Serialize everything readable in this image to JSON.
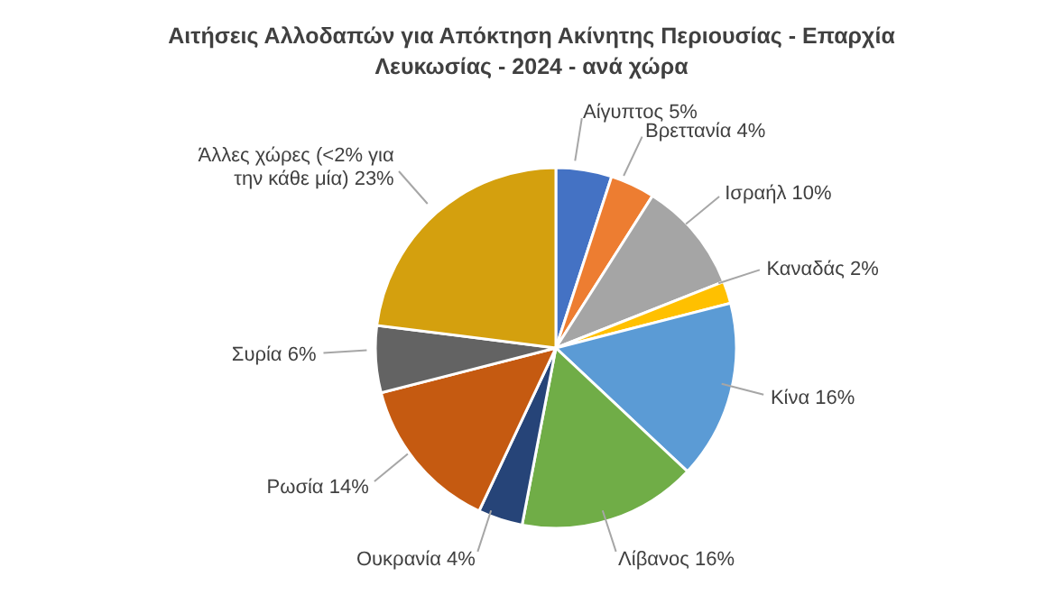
{
  "chart_data": {
    "type": "pie",
    "title": "Αιτήσεις Αλλοδαπών για Απόκτηση Ακίνητης Περιουσίας - Επαρχία Λευκωσίας - 2024 - ανά χώρα",
    "categories": [
      "Αίγυπτος",
      "Βρεττανία",
      "Ισραήλ",
      "Καναδάς",
      "Κίνα",
      "Λίβανος",
      "Ουκρανία",
      "Ρωσία",
      "Συρία",
      "Άλλες χώρες (<2% για την κάθε μία)"
    ],
    "values": [
      5,
      4,
      10,
      2,
      16,
      16,
      4,
      14,
      6,
      23
    ],
    "value_labels": [
      "5%",
      "4%",
      "10%",
      "2%",
      "16%",
      "16%",
      "4%",
      "14%",
      "6%",
      "23%"
    ],
    "colors": [
      "#4472c4",
      "#ed7d31",
      "#a5a5a5",
      "#ffc000",
      "#5b9bd5",
      "#70ad47",
      "#264478",
      "#c55a11",
      "#636363",
      "#d4a00e"
    ]
  }
}
